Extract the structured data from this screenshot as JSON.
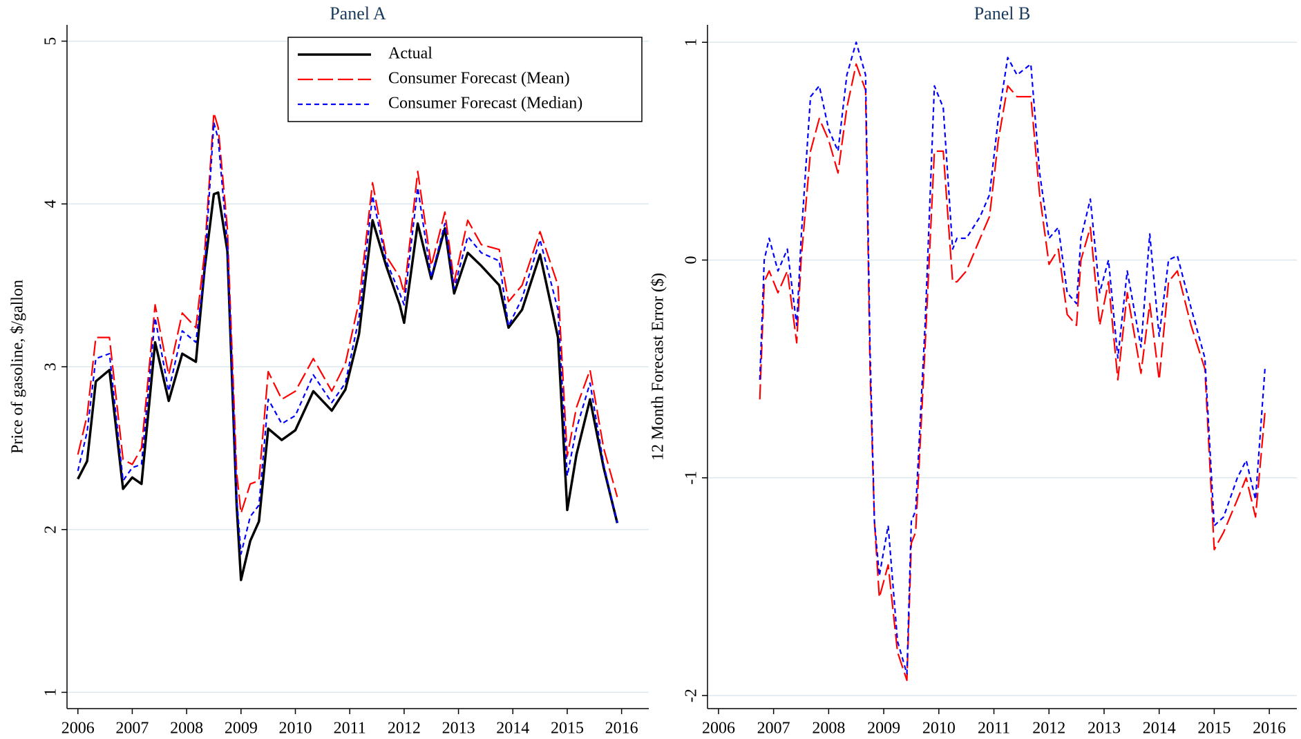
{
  "chart_data": [
    {
      "type": "line",
      "title": "Panel A",
      "y_label": "Price of gasoline, $/gallon",
      "legend": "top-right",
      "grid": true,
      "xlim": [
        2005.8,
        2016.5
      ],
      "xticks": [
        2006,
        2007,
        2008,
        2009,
        2010,
        2011,
        2012,
        2013,
        2014,
        2015,
        2016
      ],
      "ylim": [
        0.9,
        5.1
      ],
      "yticks": [
        1,
        2,
        3,
        4,
        5
      ],
      "x": [
        2006,
        2006.17,
        2006.33,
        2006.58,
        2006.83,
        2007,
        2007.17,
        2007.42,
        2007.67,
        2007.92,
        2008.17,
        2008.33,
        2008.5,
        2008.58,
        2008.75,
        2008.92,
        2009,
        2009.17,
        2009.33,
        2009.5,
        2009.75,
        2010,
        2010.33,
        2010.67,
        2010.92,
        2011.17,
        2011.42,
        2011.67,
        2011.92,
        2012,
        2012.25,
        2012.5,
        2012.75,
        2012.92,
        2013.17,
        2013.42,
        2013.75,
        2013.92,
        2014.17,
        2014.5,
        2014.83,
        2015,
        2015.17,
        2015.42,
        2015.67,
        2015.92
      ],
      "series": [
        {
          "name": "Actual",
          "color": "#000000",
          "style": "solid",
          "values": [
            2.31,
            2.42,
            2.91,
            2.98,
            2.25,
            2.32,
            2.28,
            3.15,
            2.79,
            3.08,
            3.03,
            3.6,
            4.06,
            4.07,
            3.71,
            2.15,
            1.69,
            1.93,
            2.05,
            2.62,
            2.55,
            2.61,
            2.85,
            2.73,
            2.86,
            3.2,
            3.9,
            3.62,
            3.38,
            3.27,
            3.88,
            3.54,
            3.85,
            3.45,
            3.7,
            3.62,
            3.5,
            3.24,
            3.35,
            3.69,
            3.18,
            2.12,
            2.46,
            2.8,
            2.38,
            2.04
          ]
        },
        {
          "name": "Consumer Forecast (Mean)",
          "color": "#ff0000",
          "style": "longdash",
          "values": [
            2.46,
            2.7,
            3.18,
            3.18,
            2.43,
            2.4,
            2.5,
            3.38,
            2.95,
            3.33,
            3.24,
            3.7,
            4.56,
            4.47,
            3.85,
            2.35,
            2.1,
            2.28,
            2.3,
            2.97,
            2.8,
            2.85,
            3.05,
            2.85,
            3.02,
            3.4,
            4.13,
            3.68,
            3.55,
            3.45,
            4.2,
            3.62,
            3.95,
            3.52,
            3.9,
            3.75,
            3.72,
            3.4,
            3.5,
            3.83,
            3.5,
            2.45,
            2.75,
            2.98,
            2.5,
            2.2
          ]
        },
        {
          "name": "Consumer Forecast (Median)",
          "color": "#0000ff",
          "style": "shortdash",
          "values": [
            2.36,
            2.6,
            3.05,
            3.08,
            2.3,
            2.38,
            2.4,
            3.3,
            2.85,
            3.22,
            3.15,
            3.6,
            4.5,
            4.4,
            3.75,
            2.2,
            1.85,
            2.08,
            2.15,
            2.8,
            2.65,
            2.7,
            2.95,
            2.78,
            2.9,
            3.3,
            4.05,
            3.65,
            3.45,
            3.38,
            4.1,
            3.55,
            3.88,
            3.48,
            3.8,
            3.7,
            3.65,
            3.25,
            3.42,
            3.78,
            3.35,
            2.33,
            2.62,
            2.9,
            2.4,
            2.04
          ]
        }
      ]
    },
    {
      "type": "line",
      "title": "Panel B",
      "y_label": "12 Month Forecast Error ($)",
      "grid": true,
      "xlim": [
        2005.8,
        2016.5
      ],
      "xticks": [
        2006,
        2007,
        2008,
        2009,
        2010,
        2011,
        2012,
        2013,
        2014,
        2015,
        2016
      ],
      "ylim": [
        -2.06,
        1.08
      ],
      "yticks": [
        -2,
        -1,
        0,
        1
      ],
      "x": [
        2006.75,
        2006.83,
        2006.92,
        2007.08,
        2007.25,
        2007.42,
        2007.5,
        2007.67,
        2007.83,
        2008,
        2008.17,
        2008.33,
        2008.5,
        2008.67,
        2008.75,
        2008.83,
        2008.92,
        2009.08,
        2009.25,
        2009.42,
        2009.5,
        2009.58,
        2009.75,
        2009.92,
        2010.08,
        2010.25,
        2010.33,
        2010.5,
        2010.75,
        2010.92,
        2011.08,
        2011.25,
        2011.42,
        2011.67,
        2011.83,
        2012,
        2012.17,
        2012.33,
        2012.5,
        2012.58,
        2012.75,
        2012.92,
        2013.08,
        2013.25,
        2013.42,
        2013.67,
        2013.83,
        2014,
        2014.17,
        2014.33,
        2014.58,
        2014.83,
        2015,
        2015.17,
        2015.42,
        2015.58,
        2015.75,
        2015.92
      ],
      "series": [
        {
          "color": "#ff0000",
          "style": "longdash",
          "values": [
            -0.64,
            -0.1,
            -0.05,
            -0.15,
            -0.05,
            -0.38,
            0.0,
            0.5,
            0.65,
            0.55,
            0.4,
            0.7,
            0.9,
            0.78,
            -0.5,
            -1.2,
            -1.55,
            -1.4,
            -1.8,
            -1.93,
            -1.3,
            -1.25,
            -0.4,
            0.5,
            0.5,
            -0.1,
            -0.1,
            -0.05,
            0.1,
            0.2,
            0.55,
            0.8,
            0.75,
            0.75,
            0.3,
            -0.02,
            0.05,
            -0.25,
            -0.3,
            0.0,
            0.15,
            -0.3,
            -0.1,
            -0.55,
            -0.15,
            -0.52,
            -0.2,
            -0.55,
            -0.1,
            -0.05,
            -0.3,
            -0.5,
            -1.33,
            -1.25,
            -1.1,
            -1.0,
            -1.18,
            -0.7
          ]
        },
        {
          "color": "#0000ff",
          "style": "shortdash",
          "values": [
            -0.55,
            0.0,
            0.1,
            -0.05,
            0.05,
            -0.3,
            0.1,
            0.75,
            0.8,
            0.6,
            0.5,
            0.85,
            1.0,
            0.85,
            -0.4,
            -1.2,
            -1.45,
            -1.22,
            -1.75,
            -1.9,
            -1.2,
            -1.15,
            -0.3,
            0.8,
            0.7,
            0.05,
            0.1,
            0.1,
            0.2,
            0.3,
            0.65,
            0.93,
            0.85,
            0.9,
            0.4,
            0.1,
            0.15,
            -0.15,
            -0.2,
            0.1,
            0.28,
            -0.15,
            0.0,
            -0.45,
            -0.05,
            -0.4,
            0.12,
            -0.35,
            0.0,
            0.02,
            -0.22,
            -0.45,
            -1.22,
            -1.18,
            -1.0,
            -0.92,
            -1.1,
            -0.5
          ]
        }
      ]
    }
  ]
}
